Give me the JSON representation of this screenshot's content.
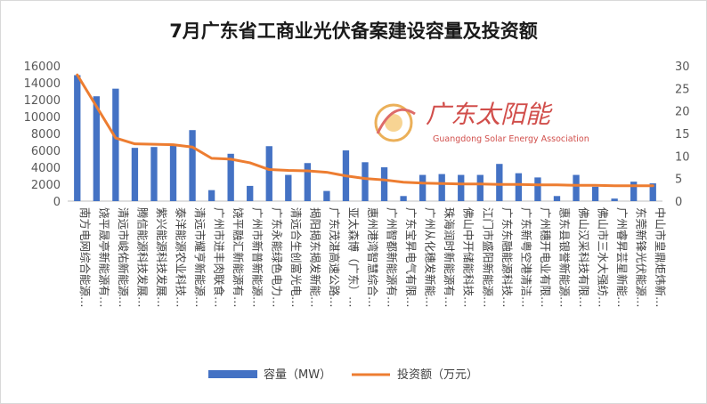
{
  "chart_data": {
    "type": "bar",
    "title": "7月广东省工商业光伏备案建设容量及投资额",
    "categories": [
      "南方电网综合能源…",
      "饶平晟亭新能源有…",
      "清远市峻佑新能源…",
      "腾信能源科技发展…",
      "紫兴能源科技发展…",
      "泰洋能源农业科技…",
      "清远市耀亨新能源…",
      "广州市进丰肉联食…",
      "饶平融汇新能源有…",
      "广州市新普新能源…",
      "广东永能绿色电力…",
      "清远合生创富光电…",
      "揭阳揭东揭发新能…",
      "广东茂湛高速公路…",
      "亚太森博（广东）…",
      "惠州港湾智慧综合…",
      "广州智都新能源有…",
      "广东宝昇电气有限…",
      "广州从化穗发新能…",
      "珠海润时新能源有…",
      "佛山中开储能科技…",
      "江门市盛阳新能源…",
      "广东东融能源科技…",
      "广东新粤空港清洁…",
      "广州穗开电业有限…",
      "惠东县银誉新能源…",
      "佛山汉采科技有限…",
      "佛山市三水大强纺…",
      "广州睿昇芸星新能…",
      "东莞新锋光伏能源…",
      "中山市皇鼎炬炜新…"
    ],
    "series": [
      {
        "name": "容量（MW）",
        "type": "bar",
        "axis": "left",
        "color": "#4472c4",
        "values": [
          14900,
          12400,
          13300,
          6300,
          6400,
          6700,
          8400,
          1300,
          5600,
          1800,
          6500,
          3100,
          4500,
          1200,
          6000,
          4600,
          4000,
          600,
          3100,
          3200,
          3100,
          3100,
          4400,
          3300,
          2800,
          600,
          3100,
          1700,
          300,
          2300,
          2100
        ]
      },
      {
        "name": "投资额（万元）",
        "type": "line",
        "axis": "right",
        "color": "#ed7d31",
        "values": [
          28,
          21,
          14,
          12.7,
          12.6,
          12.5,
          12,
          9.5,
          9.3,
          8.5,
          7,
          6.8,
          6.7,
          6.4,
          5.6,
          5,
          4.7,
          4.2,
          4,
          3.9,
          3.8,
          3.8,
          3.7,
          3.7,
          3.6,
          3.6,
          3.5,
          3.5,
          3.4,
          3.4,
          3.4
        ]
      }
    ],
    "y_left": {
      "min": 0,
      "max": 16000,
      "ticks": [
        0,
        2000,
        4000,
        6000,
        8000,
        10000,
        12000,
        14000,
        16000
      ]
    },
    "y_right": {
      "min": 0,
      "max": 30,
      "ticks": [
        0,
        5,
        10,
        15,
        20,
        25,
        30
      ]
    },
    "grid": false,
    "legend": "bottom"
  },
  "watermark": {
    "name_cn": "广东太阳能",
    "name_en": "Guangdong Solar Energy Association"
  }
}
